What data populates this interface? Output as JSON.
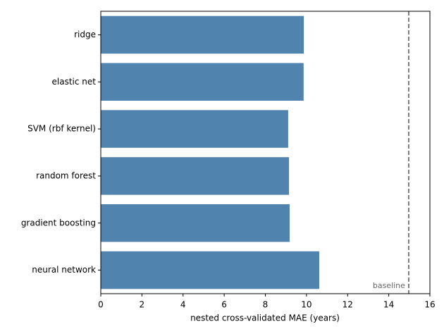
{
  "chart_data": {
    "type": "barh",
    "categories": [
      "ridge",
      "elastic net",
      "SVM (rbf kernel)",
      "random forest",
      "gradient boosting",
      "neural network"
    ],
    "values": [
      9.87,
      9.86,
      9.11,
      9.15,
      9.18,
      10.62
    ],
    "color": "#5083ad",
    "xlabel": "nested cross-validated MAE (years)",
    "xlim": [
      0,
      16
    ],
    "xticks": [
      0,
      2,
      4,
      6,
      8,
      10,
      12,
      14,
      16
    ],
    "baseline": {
      "value": 14.97,
      "label": "baseline",
      "color": "#555555"
    }
  }
}
